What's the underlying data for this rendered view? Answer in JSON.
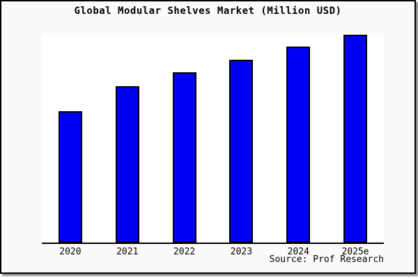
{
  "frame": {
    "background": "#fafafa",
    "plot_background": "#ffffff",
    "border_color": "#000000",
    "shadow_color": "#8a8a8a"
  },
  "chart_data": {
    "type": "bar",
    "title": "Global Modular Shelves Market (Million USD)",
    "categories": [
      "2020",
      "2021",
      "2022",
      "2023",
      "2024",
      "2025e"
    ],
    "values": [
      190,
      226,
      246,
      264,
      283,
      300
    ],
    "value_note": "No y-axis ticks, labels or gridlines are visible; values are estimated relative bar heights in arbitrary units (tallest bar = 300).",
    "xlabel": "",
    "ylabel": "",
    "ylim": [
      0,
      300
    ],
    "grid": false,
    "legend": false,
    "bar_color": "#0000f4",
    "bar_border_color": "#000000"
  },
  "source": {
    "label": "Source: Prof Research"
  }
}
